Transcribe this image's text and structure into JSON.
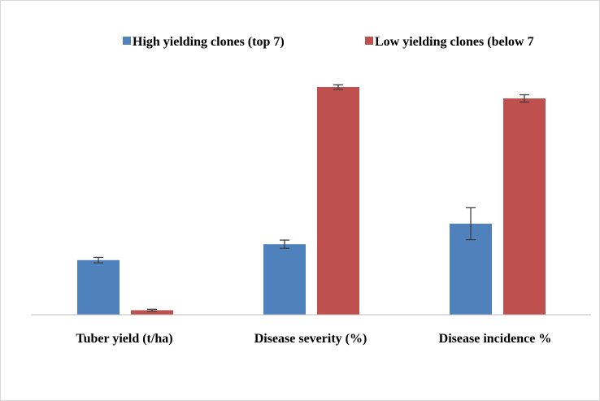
{
  "chart_data": {
    "type": "bar",
    "categories": [
      "Tuber yield (t/ha)",
      "Disease severity  (%)",
      "Disease incidence %"
    ],
    "series": [
      {
        "name": "High yielding clones  (top 7)",
        "color": "#4f81bd",
        "values": [
          24,
          31,
          40
        ],
        "errors": [
          1.2,
          1.8,
          7.0
        ]
      },
      {
        "name": "Low yielding clones (below 7",
        "color": "#c0504d",
        "values": [
          2,
          100,
          95
        ],
        "errors": [
          0.4,
          1.0,
          1.6
        ]
      }
    ],
    "ylim": [
      0,
      100
    ],
    "grid": false,
    "legend_position": "top"
  }
}
